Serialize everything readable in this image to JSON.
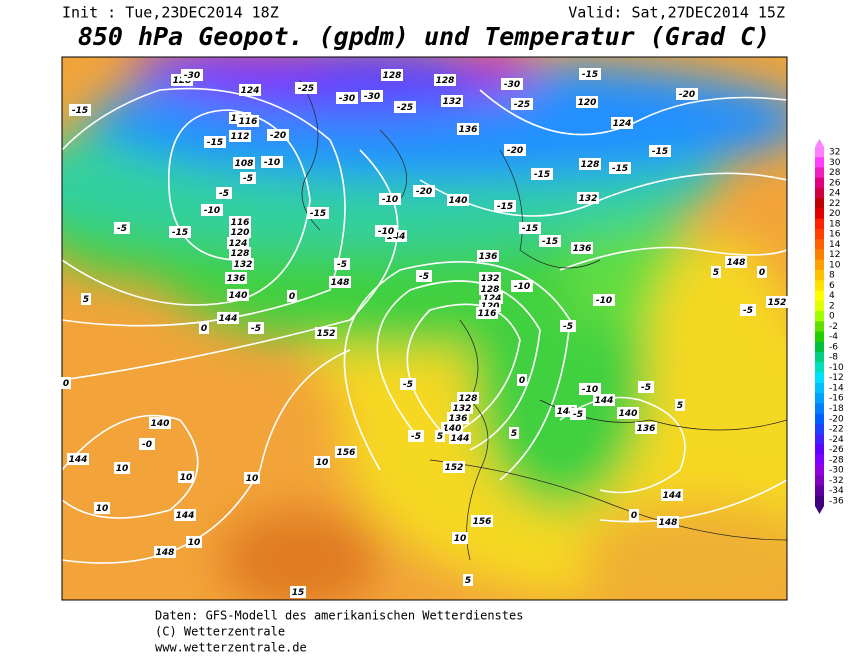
{
  "header": {
    "init": "Init : Tue,23DEC2014 18Z",
    "valid": "Valid: Sat,27DEC2014 15Z",
    "title": "850 hPa Geopot. (gpdm) und Temperatur (Grad C)"
  },
  "colorbar": {
    "ticks": [
      32,
      30,
      28,
      26,
      24,
      22,
      20,
      18,
      16,
      14,
      12,
      10,
      8,
      6,
      4,
      2,
      0,
      -2,
      -4,
      -6,
      -8,
      -10,
      -12,
      -14,
      -16,
      -18,
      -20,
      -22,
      -24,
      -26,
      -28,
      -30,
      -32,
      -34,
      -36
    ],
    "colors": [
      "#ff80ff",
      "#ff40ff",
      "#f020c0",
      "#e00080",
      "#d00040",
      "#c00000",
      "#e00000",
      "#ff2000",
      "#ff4000",
      "#ff6000",
      "#ff8000",
      "#ffa000",
      "#ffc000",
      "#ffe000",
      "#ffff00",
      "#e0ff00",
      "#a0ff00",
      "#60e000",
      "#20d000",
      "#00c040",
      "#00d080",
      "#00e0c0",
      "#00e0ff",
      "#00c0ff",
      "#00a0ff",
      "#0080ff",
      "#0060ff",
      "#2040ff",
      "#4020ff",
      "#6000ff",
      "#8000ff",
      "#9000e0",
      "#8000c0",
      "#6000a0",
      "#400080"
    ]
  },
  "contour_labels": [
    "128",
    "124",
    "120",
    "116",
    "112",
    "108",
    "116",
    "120",
    "124",
    "128",
    "132",
    "136",
    "140",
    "144",
    "148",
    "152",
    "156",
    "152",
    "156",
    "148",
    "144",
    "140",
    "144",
    "128",
    "128",
    "132",
    "136",
    "140",
    "144",
    "136",
    "132",
    "128",
    "124",
    "120",
    "116",
    "128",
    "132",
    "136",
    "140",
    "144",
    "148",
    "144",
    "140",
    "136",
    "144",
    "148",
    "148",
    "120",
    "124",
    "128",
    "132",
    "136",
    "152",
    "-30",
    "-25",
    "-30",
    "-30",
    "-25",
    "-30",
    "-25",
    "-15",
    "-20",
    "-15",
    "-15",
    "-20",
    "-10",
    "-5",
    "-5",
    "-10",
    "-15",
    "-5",
    "-15",
    "-10",
    "-5",
    "-5",
    "-10",
    "-5",
    "-10",
    "-15",
    "-15",
    "-15",
    "-15",
    "-20",
    "-15",
    "-15",
    "-20",
    "-10",
    "0",
    "-5",
    "0",
    "5",
    "0",
    "-0",
    "10",
    "10",
    "10",
    "10",
    "10",
    "10",
    "10",
    "5",
    "15",
    "5",
    "-5",
    "5",
    "0",
    "-5",
    "-10",
    "-5",
    "-5",
    "0",
    "5",
    "0",
    "-5",
    "5"
  ],
  "footer": {
    "source": "Daten: GFS-Modell des amerikanischen Wetterdienstes",
    "copyright": "(C) Wetterzentrale",
    "url": "www.wetterzentrale.de"
  }
}
